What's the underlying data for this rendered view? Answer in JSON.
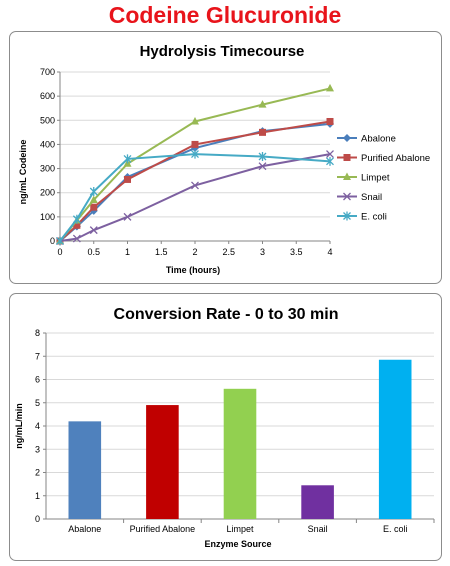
{
  "page": {
    "title": "Codeine Glucuronide",
    "title_color": "#e8141b"
  },
  "chart_data": [
    {
      "type": "line",
      "title": "Hydrolysis Timecourse",
      "xlabel": "Time (hours)",
      "ylabel": "ng/mL Codeine",
      "xlim": [
        0,
        4
      ],
      "ylim": [
        0,
        700
      ],
      "xticks": [
        "0",
        "0.5",
        "1",
        "1.5",
        "2",
        "2.5",
        "3",
        "3.5",
        "4"
      ],
      "yticks": [
        "0",
        "100",
        "200",
        "300",
        "400",
        "500",
        "600",
        "700"
      ],
      "grid": "horizontal",
      "legend": "right",
      "series": [
        {
          "name": "Abalone",
          "color": "#4a7ebb",
          "marker": "diamond",
          "x": [
            0,
            0.25,
            0.5,
            1,
            2,
            3,
            4
          ],
          "y": [
            0,
            60,
            125,
            265,
            385,
            455,
            485
          ]
        },
        {
          "name": "Purified Abalone",
          "color": "#be4b48",
          "marker": "square",
          "x": [
            0,
            0.25,
            0.5,
            1,
            2,
            3,
            4
          ],
          "y": [
            0,
            65,
            140,
            255,
            400,
            450,
            495
          ]
        },
        {
          "name": "Limpet",
          "color": "#98b954",
          "marker": "triangle",
          "x": [
            0,
            0.25,
            0.5,
            1,
            2,
            3,
            4
          ],
          "y": [
            0,
            85,
            170,
            320,
            495,
            565,
            632
          ]
        },
        {
          "name": "Snail",
          "color": "#7d60a0",
          "marker": "x",
          "x": [
            0,
            0.25,
            0.5,
            1,
            2,
            3,
            4
          ],
          "y": [
            0,
            10,
            45,
            100,
            230,
            310,
            360
          ]
        },
        {
          "name": "E. coli",
          "color": "#46aac5",
          "marker": "star",
          "x": [
            0,
            0.25,
            0.5,
            1,
            2,
            3,
            4
          ],
          "y": [
            0,
            90,
            205,
            340,
            360,
            350,
            330
          ]
        }
      ]
    },
    {
      "type": "bar",
      "title": "Conversion Rate - 0 to 30 min",
      "xlabel": "Enzyme Source",
      "ylabel": "ng/mL/min",
      "ylim": [
        0,
        8
      ],
      "yticks": [
        "0",
        "1",
        "2",
        "3",
        "4",
        "5",
        "6",
        "7",
        "8"
      ],
      "grid": "horizontal",
      "categories": [
        "Abalone",
        "Purified Abalone",
        "Limpet",
        "Snail",
        "E. coli"
      ],
      "values": [
        4.2,
        4.9,
        5.6,
        1.45,
        6.85
      ],
      "colors": [
        "#4f81bd",
        "#c00000",
        "#92d050",
        "#7030a0",
        "#00b0f0"
      ]
    }
  ]
}
